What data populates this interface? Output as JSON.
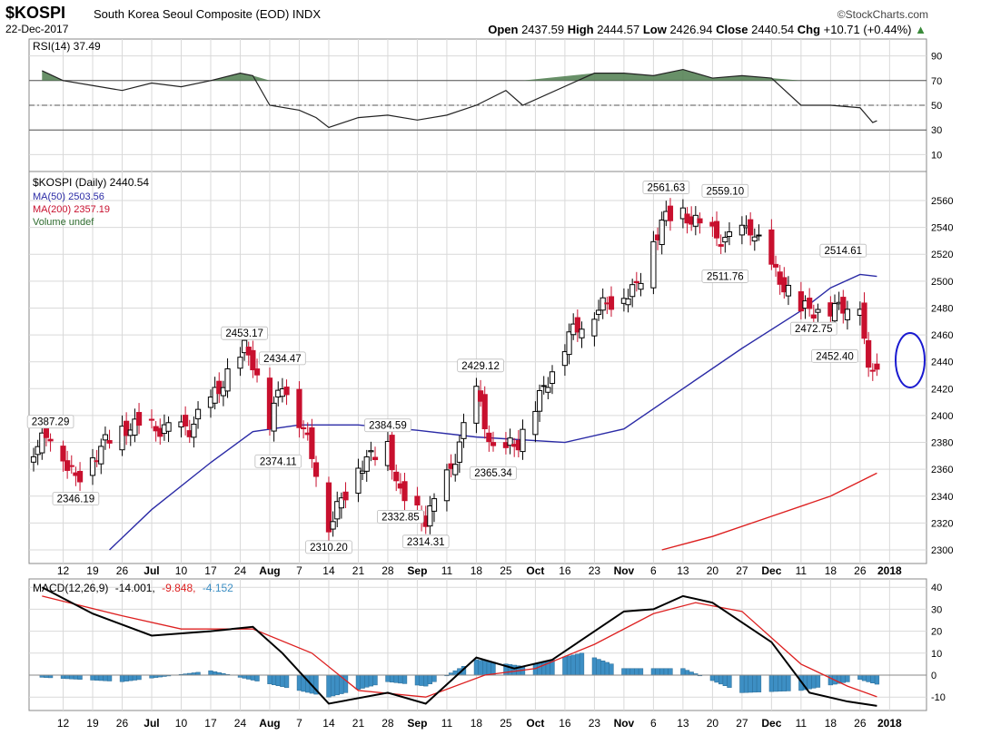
{
  "header": {
    "symbol": "$KOSPI",
    "description": "South Korea Seoul Composite (EOD)  INDX",
    "date": "22-Dec-2017",
    "brand": "©StockCharts.com",
    "open_label": "Open",
    "open": "2437.59",
    "high_label": "High",
    "high": "2444.57",
    "low_label": "Low",
    "low": "2426.94",
    "close_label": "Close",
    "close": "2440.54",
    "chg_label": "Chg",
    "chg": "+10.71 (+0.44%)"
  },
  "colors": {
    "up": "#000000",
    "down": "#c8102e",
    "ma50": "#2b2ba6",
    "ma200": "#dd2020",
    "macd": "#000000",
    "signal": "#dd2020",
    "hist": "#3d8fc4",
    "rsi_fill": "#4e7d4e",
    "circle": "#1a1ad0",
    "grid": "#d9d9d9"
  },
  "chart_data": [
    {
      "type": "line",
      "panel": "rsi",
      "label": "RSI(14) 37.49",
      "ylim": [
        0,
        100
      ],
      "ticks": [
        "90",
        "70",
        "50",
        "30",
        "10"
      ],
      "levels": [
        70,
        50,
        30
      ],
      "x": [
        "2017-06-07",
        "2017-06-12",
        "2017-06-19",
        "2017-06-26",
        "2017-07-03",
        "2017-07-10",
        "2017-07-17",
        "2017-07-24",
        "2017-07-27",
        "2017-07-31",
        "2017-08-07",
        "2017-08-11",
        "2017-08-14",
        "2017-08-21",
        "2017-08-28",
        "2017-09-04",
        "2017-09-11",
        "2017-09-18",
        "2017-09-25",
        "2017-09-29",
        "2017-10-16",
        "2017-10-23",
        "2017-10-30",
        "2017-11-06",
        "2017-11-13",
        "2017-11-20",
        "2017-11-27",
        "2017-12-04",
        "2017-12-11",
        "2017-12-18",
        "2017-12-21",
        "2017-12-22"
      ],
      "y": [
        78,
        70,
        66,
        62,
        68,
        65,
        70,
        76,
        74,
        50,
        46,
        40,
        32,
        40,
        42,
        38,
        42,
        50,
        62,
        50,
        76,
        76,
        74,
        79,
        72,
        74,
        72,
        50,
        50,
        48,
        36,
        37.49
      ]
    },
    {
      "type": "candlestick",
      "panel": "price",
      "label": "$KOSPI (Daily) 2440.54",
      "ylim": [
        2290,
        2570
      ],
      "ticks": [
        "2560",
        "2540",
        "2520",
        "2500",
        "2480",
        "2460",
        "2440",
        "2420",
        "2400",
        "2380",
        "2360",
        "2340",
        "2320",
        "2300"
      ],
      "legend": [
        "MA(50) 2503.56",
        "MA(200) 2357.19",
        "Volume undef"
      ],
      "series": [
        {
          "name": "MA(50) 2503.56",
          "x": [
            "2017-06-23",
            "2017-07-03",
            "2017-07-17",
            "2017-07-27",
            "2017-08-07",
            "2017-08-21",
            "2017-09-04",
            "2017-09-18",
            "2017-10-09",
            "2017-10-23",
            "2017-11-06",
            "2017-11-20",
            "2017-12-04",
            "2017-12-11",
            "2017-12-18",
            "2017-12-22"
          ],
          "y": [
            2300,
            2330,
            2365,
            2388,
            2393,
            2393,
            2389,
            2384,
            2380,
            2390,
            2420,
            2450,
            2478,
            2495,
            2505,
            2503.56
          ]
        },
        {
          "name": "MA(200) 2357.19",
          "x": [
            "2017-11-01",
            "2017-11-13",
            "2017-11-27",
            "2017-12-11",
            "2017-12-22"
          ],
          "y": [
            2300,
            2310,
            2325,
            2340,
            2357.19
          ]
        }
      ],
      "annotations": [
        {
          "x": "2017-06-09",
          "y": 2387.29,
          "text": "2387.29"
        },
        {
          "x": "2017-06-15",
          "y": 2346.19,
          "text": "2346.19"
        },
        {
          "x": "2017-07-25",
          "y": 2453.17,
          "text": "2453.17"
        },
        {
          "x": "2017-08-03",
          "y": 2434.47,
          "text": "2434.47"
        },
        {
          "x": "2017-08-02",
          "y": 2374.11,
          "text": "2374.11"
        },
        {
          "x": "2017-08-14",
          "y": 2310.2,
          "text": "2310.20"
        },
        {
          "x": "2017-08-28",
          "y": 2384.59,
          "text": "2384.59"
        },
        {
          "x": "2017-08-31",
          "y": 2332.85,
          "text": "2332.85"
        },
        {
          "x": "2017-09-06",
          "y": 2314.31,
          "text": "2314.31"
        },
        {
          "x": "2017-09-19",
          "y": 2429.12,
          "text": "2429.12"
        },
        {
          "x": "2017-09-22",
          "y": 2365.34,
          "text": "2365.34"
        },
        {
          "x": "2017-11-02",
          "y": 2561.63,
          "text": "2561.63"
        },
        {
          "x": "2017-11-16",
          "y": 2559.1,
          "text": "2559.10"
        },
        {
          "x": "2017-11-16",
          "y": 2511.76,
          "text": "2511.76"
        },
        {
          "x": "2017-12-14",
          "y": 2514.61,
          "text": "2514.61"
        },
        {
          "x": "2017-12-07",
          "y": 2472.75,
          "text": "2472.75"
        },
        {
          "x": "2017-12-12",
          "y": 2452.4,
          "text": "2452.40"
        }
      ]
    },
    {
      "type": "line",
      "panel": "macd",
      "label": "MACD(12,26,9) -14.001, -9.848, -4.152",
      "label_parts": [
        "MACD(12,26,9)",
        "-14.001,",
        "-9.848,",
        "-4.152"
      ],
      "ylim": [
        -15,
        42
      ],
      "ticks": [
        "40",
        "30",
        "20",
        "10",
        "0",
        "-10"
      ],
      "series": [
        {
          "name": "MACD",
          "x": [
            "2017-06-07",
            "2017-06-19",
            "2017-07-03",
            "2017-07-17",
            "2017-07-27",
            "2017-08-03",
            "2017-08-14",
            "2017-08-28",
            "2017-09-06",
            "2017-09-18",
            "2017-09-27",
            "2017-10-06",
            "2017-10-23",
            "2017-10-30",
            "2017-11-06",
            "2017-11-13",
            "2017-11-27",
            "2017-12-06",
            "2017-12-15",
            "2017-12-22"
          ],
          "y": [
            40,
            28,
            18,
            20,
            22,
            10,
            -13,
            -8,
            -13,
            8,
            3,
            7,
            29,
            30,
            36,
            33,
            15,
            -8,
            -12,
            -14.001
          ]
        },
        {
          "name": "Signal",
          "x": [
            "2017-06-07",
            "2017-06-26",
            "2017-07-10",
            "2017-07-27",
            "2017-08-10",
            "2017-08-21",
            "2017-09-06",
            "2017-09-20",
            "2017-10-02",
            "2017-10-16",
            "2017-10-30",
            "2017-11-09",
            "2017-11-20",
            "2017-12-04",
            "2017-12-15",
            "2017-12-22"
          ],
          "y": [
            36,
            27,
            21,
            21,
            10,
            -7,
            -10,
            0,
            3,
            14,
            28,
            33,
            29,
            5,
            -5,
            -9.848
          ]
        },
        {
          "name": "Histogram",
          "x": [
            "2017-06-07",
            "2017-06-26",
            "2017-07-17",
            "2017-08-07",
            "2017-08-14",
            "2017-08-28",
            "2017-09-06",
            "2017-09-18",
            "2017-09-29",
            "2017-10-13",
            "2017-10-23",
            "2017-11-06",
            "2017-11-20",
            "2017-12-04",
            "2017-12-18",
            "2017-12-22"
          ],
          "y": [
            -1,
            -3,
            2,
            -7,
            -10,
            -3,
            -5,
            7,
            4,
            10,
            3,
            3,
            -8,
            -7,
            -2,
            -4.152
          ]
        }
      ]
    }
  ],
  "x_axis": {
    "labels": [
      "12",
      "19",
      "26",
      "Jul",
      "10",
      "17",
      "24",
      "Aug",
      "7",
      "14",
      "21",
      "28",
      "Sep",
      "11",
      "18",
      "25",
      "Oct",
      "16",
      "23",
      "Nov",
      "6",
      "13",
      "20",
      "27",
      "Dec",
      "11",
      "18",
      "26",
      "2018"
    ],
    "bold": [
      "Jul",
      "Aug",
      "Sep",
      "Oct",
      "Nov",
      "Dec",
      "2018"
    ]
  }
}
